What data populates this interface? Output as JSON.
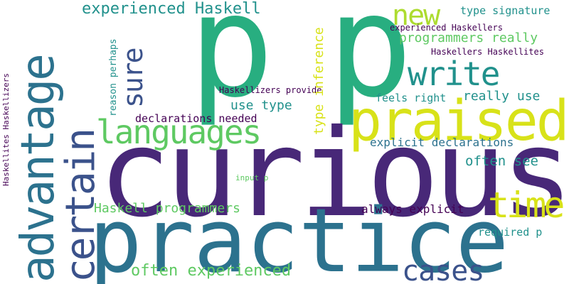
{
  "palette": {
    "dark_purple": "#440154",
    "indigo": "#3b528b",
    "teal": "#21918c",
    "blue_teal": "#2c728e",
    "green": "#28ae80",
    "light_green": "#5ec962",
    "lime": "#addc30",
    "yellow": "#d8e219"
  },
  "words": [
    {
      "text": "p",
      "color": "#28ae80"
    },
    {
      "text": "p",
      "color": "#28ae80"
    },
    {
      "text": "curious",
      "color": "#482878"
    },
    {
      "text": "practice",
      "color": "#2c728e"
    },
    {
      "text": "praised",
      "color": "#d8e219"
    },
    {
      "text": "advantage",
      "color": "#2c728e"
    },
    {
      "text": "certain",
      "color": "#3b528b"
    },
    {
      "text": "languages",
      "color": "#5ec962"
    },
    {
      "text": "write",
      "color": "#21918c"
    },
    {
      "text": "new",
      "color": "#addc30"
    },
    {
      "text": "sure",
      "color": "#3b528b"
    },
    {
      "text": "time",
      "color": "#d8e219"
    },
    {
      "text": "cases",
      "color": "#3b528b"
    },
    {
      "text": "experienced Haskell",
      "color": "#21918c"
    },
    {
      "text": "type signature",
      "color": "#21918c"
    },
    {
      "text": "experienced Haskellers",
      "color": "#440154"
    },
    {
      "text": "programmers really",
      "color": "#5ec962"
    },
    {
      "text": "Haskellers Haskellites",
      "color": "#440154"
    },
    {
      "text": "Haskellizers provide",
      "color": "#440154"
    },
    {
      "text": "feels right",
      "color": "#21918c"
    },
    {
      "text": "really use",
      "color": "#21918c"
    },
    {
      "text": "use type",
      "color": "#21918c"
    },
    {
      "text": "declarations needed",
      "color": "#440154"
    },
    {
      "text": "explicit declarations",
      "color": "#2c728e"
    },
    {
      "text": "often see",
      "color": "#21918c"
    },
    {
      "text": "Haskell programmers",
      "color": "#5ec962"
    },
    {
      "text": "always explicit",
      "color": "#440154"
    },
    {
      "text": "required p",
      "color": "#21918c"
    },
    {
      "text": "often experienced",
      "color": "#5ec962"
    },
    {
      "text": "input p",
      "color": "#5ec962"
    },
    {
      "text": "type inference",
      "color": "#d8e219"
    },
    {
      "text": "reason perhaps",
      "color": "#21918c"
    },
    {
      "text": "Haskellites Haskellizers",
      "color": "#440154"
    }
  ]
}
